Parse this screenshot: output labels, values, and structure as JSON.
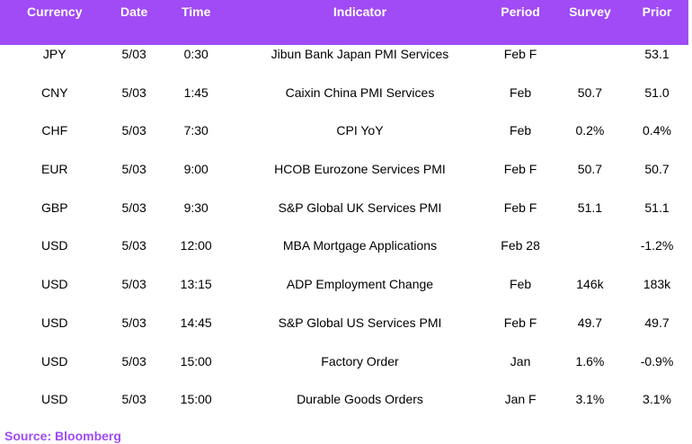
{
  "colors": {
    "header_bg": "#a04bf5",
    "header_text": "#ffffff",
    "source_text": "#a04bf5"
  },
  "headers": {
    "currency": "Currency",
    "date": "Date",
    "time": "Time",
    "indicator": "Indicator",
    "period": "Period",
    "survey": "Survey",
    "prior": "Prior"
  },
  "rows": [
    {
      "currency": "JPY",
      "date": "5/03",
      "time": "0:30",
      "indicator": "Jibun Bank Japan PMI Services",
      "period": "Feb F",
      "survey": "",
      "prior": "53.1"
    },
    {
      "currency": "CNY",
      "date": "5/03",
      "time": "1:45",
      "indicator": "Caixin China PMI Services",
      "period": "Feb",
      "survey": "50.7",
      "prior": "51.0"
    },
    {
      "currency": "CHF",
      "date": "5/03",
      "time": "7:30",
      "indicator": "CPI YoY",
      "period": "Feb",
      "survey": "0.2%",
      "prior": "0.4%"
    },
    {
      "currency": "EUR",
      "date": "5/03",
      "time": "9:00",
      "indicator": "HCOB Eurozone Services PMI",
      "period": "Feb F",
      "survey": "50.7",
      "prior": "50.7"
    },
    {
      "currency": "GBP",
      "date": "5/03",
      "time": "9:30",
      "indicator": "S&P Global UK Services PMI",
      "period": "Feb F",
      "survey": "51.1",
      "prior": "51.1"
    },
    {
      "currency": "USD",
      "date": "5/03",
      "time": "12:00",
      "indicator": "MBA Mortgage Applications",
      "period": "Feb 28",
      "survey": "",
      "prior": "-1.2%"
    },
    {
      "currency": "USD",
      "date": "5/03",
      "time": "13:15",
      "indicator": "ADP Employment Change",
      "period": "Feb",
      "survey": "146k",
      "prior": "183k"
    },
    {
      "currency": "USD",
      "date": "5/03",
      "time": "14:45",
      "indicator": "S&P Global US Services PMI",
      "period": "Feb F",
      "survey": "49.7",
      "prior": "49.7"
    },
    {
      "currency": "USD",
      "date": "5/03",
      "time": "15:00",
      "indicator": "Factory Order",
      "period": "Jan",
      "survey": "1.6%",
      "prior": "-0.9%"
    },
    {
      "currency": "USD",
      "date": "5/03",
      "time": "15:00",
      "indicator": "Durable Goods Orders",
      "period": "Jan F",
      "survey": "3.1%",
      "prior": "3.1%"
    }
  ],
  "source": "Source: Bloomberg"
}
